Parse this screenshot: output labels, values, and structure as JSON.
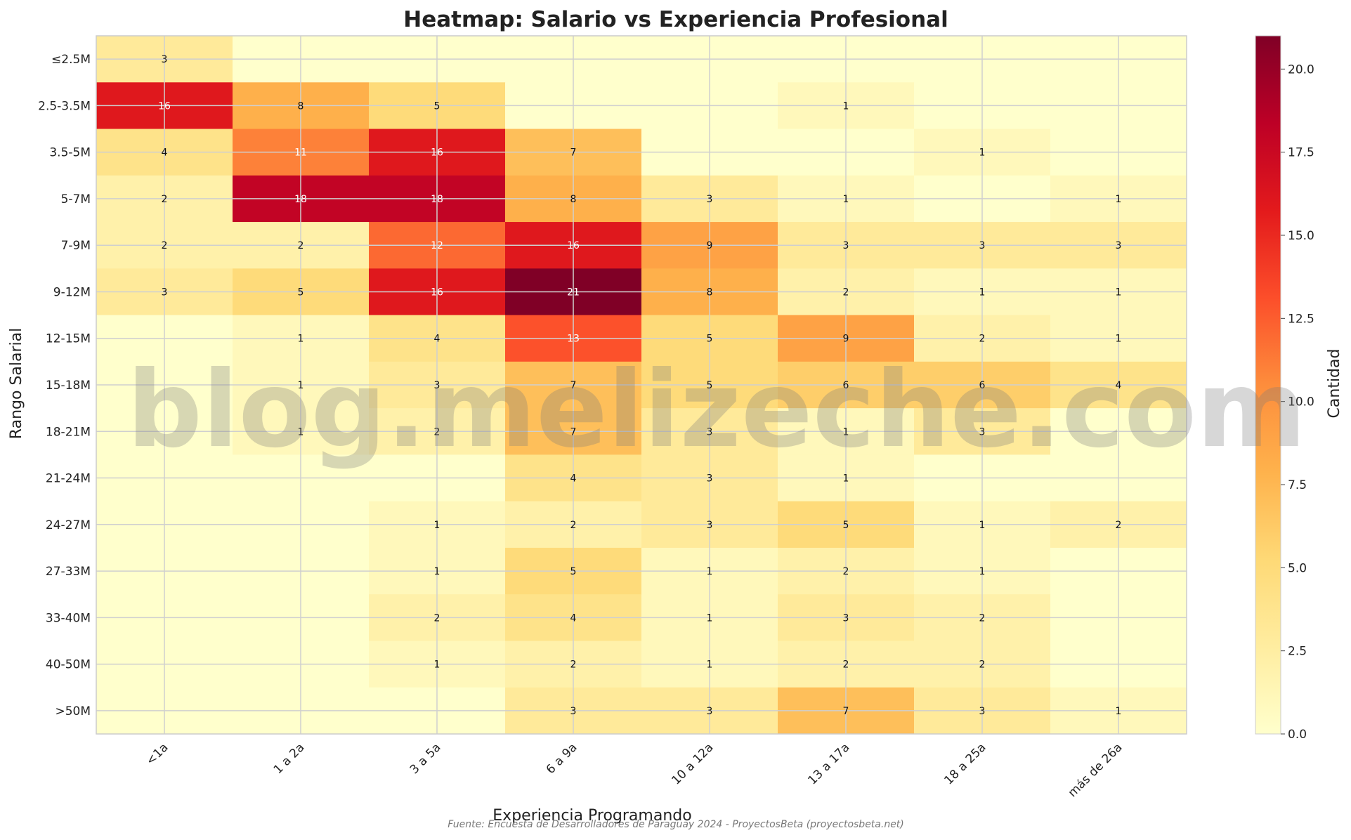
{
  "chart_data": {
    "type": "heatmap",
    "title": "Heatmap: Salario vs Experiencia Profesional",
    "xlabel": "Experiencia Programando",
    "ylabel": "Rango Salarial",
    "colorbar_label": "Cantidad",
    "colorbar_ticks": [
      "0.0",
      "2.5",
      "5.0",
      "7.5",
      "10.0",
      "12.5",
      "15.0",
      "17.5",
      "20.0"
    ],
    "colorbar_range": [
      0,
      21
    ],
    "colormap": [
      "#ffffcc",
      "#ffeda0",
      "#fed976",
      "#feb24c",
      "#fd8d3c",
      "#fc4e2a",
      "#e31a1c",
      "#bd0026",
      "#800026"
    ],
    "x_categories": [
      "<1a",
      "1 a 2a",
      "3 a 5a",
      "6 a 9a",
      "10 a 12a",
      "13 a 17a",
      "18 a 25a",
      "más de 26a"
    ],
    "y_categories": [
      "≤2.5M",
      "2.5-3.5M",
      "3.5-5M",
      "5-7M",
      "7-9M",
      "9-12M",
      "12-15M",
      "15-18M",
      "18-21M",
      "21-24M",
      "24-27M",
      "27-33M",
      "33-40M",
      "40-50M",
      ">50M"
    ],
    "values": [
      [
        3,
        0,
        0,
        0,
        0,
        0,
        0,
        0
      ],
      [
        16,
        8,
        5,
        0,
        0,
        1,
        0,
        0
      ],
      [
        4,
        11,
        16,
        7,
        0,
        0,
        1,
        0
      ],
      [
        2,
        18,
        18,
        8,
        3,
        1,
        0,
        1
      ],
      [
        2,
        2,
        12,
        16,
        9,
        3,
        3,
        3
      ],
      [
        3,
        5,
        16,
        21,
        8,
        2,
        1,
        1
      ],
      [
        0,
        1,
        4,
        13,
        5,
        9,
        2,
        1
      ],
      [
        0,
        1,
        3,
        7,
        5,
        6,
        6,
        4
      ],
      [
        0,
        1,
        2,
        7,
        3,
        1,
        3,
        0
      ],
      [
        0,
        0,
        0,
        4,
        3,
        1,
        0,
        0
      ],
      [
        0,
        0,
        1,
        2,
        3,
        5,
        1,
        2
      ],
      [
        0,
        0,
        1,
        5,
        1,
        2,
        1,
        0
      ],
      [
        0,
        0,
        2,
        4,
        1,
        3,
        2,
        0
      ],
      [
        0,
        0,
        1,
        2,
        1,
        2,
        2,
        0
      ],
      [
        0,
        0,
        0,
        3,
        3,
        7,
        3,
        1
      ]
    ],
    "grid": true
  },
  "watermark": "blog.melizeche.com",
  "footer": "Fuente: Encuesta de Desarrolladores de Paraguay 2024 - ProyectosBeta (proyectosbeta.net)"
}
